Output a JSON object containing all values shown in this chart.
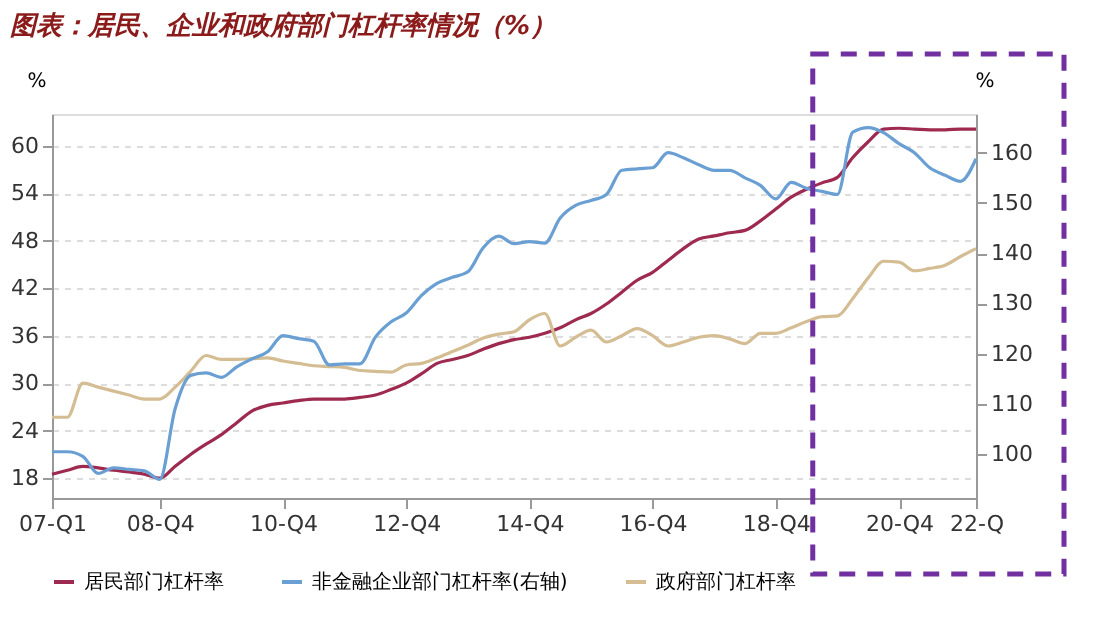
{
  "chart_data": {
    "type": "line",
    "title": "图表：居民、企业和政府部门杠杆率情况（%）",
    "ylabel": "%",
    "y2label": "%",
    "categories": [
      "07-Q1",
      null,
      null,
      null,
      null,
      null,
      null,
      "08-Q4",
      null,
      null,
      null,
      null,
      null,
      null,
      null,
      "10-Q4",
      null,
      null,
      null,
      null,
      null,
      null,
      null,
      "12-Q4",
      null,
      null,
      null,
      null,
      null,
      null,
      null,
      "14-Q4",
      null,
      null,
      null,
      null,
      null,
      null,
      null,
      "16-Q4",
      null,
      null,
      null,
      null,
      null,
      null,
      null,
      "18-Q4",
      null,
      null,
      null,
      null,
      null,
      null,
      null,
      "20-Q4",
      null,
      null,
      null,
      null,
      "22-Q"
    ],
    "series": [
      {
        "name": "居民部门杠杆率",
        "color": "#9e2a4f",
        "values": [
          18.5,
          19,
          19.5,
          19.3,
          19,
          18.8,
          18.5,
          18,
          19.5,
          21,
          22.3,
          23.5,
          25,
          26.5,
          27.2,
          27.5,
          27.8,
          28,
          28,
          28,
          28.2,
          28.5,
          29.2,
          30,
          31.2,
          32.5,
          33,
          33.5,
          34.3,
          35,
          35.5,
          35.8,
          36.3,
          37,
          38,
          38.8,
          40,
          41.5,
          43,
          44,
          45.5,
          47,
          48.2,
          48.6,
          49,
          49.3,
          50.5,
          52,
          53.5,
          54.5,
          55.3,
          56,
          58.5,
          60.5,
          62.1,
          62.2,
          62.1,
          62,
          62,
          62.1,
          62.1
        ]
      },
      {
        "name": "非金融企业部门杠杆率(右轴)",
        "color": "#6a9fd4",
        "axis": "y2",
        "values": [
          100.5,
          100.5,
          99.6,
          96.2,
          97.3,
          97,
          96.7,
          95,
          109.1,
          115.7,
          116.2,
          115.3,
          117.4,
          119,
          120.4,
          123.6,
          123,
          122.5,
          117.8,
          118,
          118,
          123.3,
          126.3,
          128.1,
          131.6,
          134,
          135.2,
          136.3,
          141.1,
          143.4,
          141.9,
          142.3,
          142,
          147,
          149.5,
          150.5,
          151.7,
          156.5,
          156.8,
          157,
          160,
          159,
          157.6,
          156.5,
          156.5,
          155,
          153.5,
          150.8,
          154.1,
          152.9,
          152.3,
          151.7,
          164.1,
          165,
          164,
          161.8,
          160,
          157,
          155.5,
          154.3,
          158.8
        ]
      },
      {
        "name": "政府部门杠杆率",
        "color": "#d4bd93",
        "values": [
          25.7,
          25.7,
          30,
          29.5,
          29,
          28.5,
          28,
          28,
          29.5,
          31.5,
          33.5,
          33,
          33,
          33.1,
          33.2,
          32.8,
          32.5,
          32.2,
          32.1,
          32,
          31.6,
          31.5,
          31.4,
          32.3,
          32.5,
          33.2,
          34,
          34.8,
          35.7,
          36.2,
          36.5,
          38,
          38.8,
          34.7,
          35.8,
          36.7,
          35.2,
          36,
          36.9,
          36,
          34.7,
          35.2,
          35.8,
          36,
          35.6,
          35,
          36.3,
          36.3,
          37,
          37.8,
          38.4,
          38.5,
          40.7,
          43.3,
          45.4,
          45.3,
          44.2,
          44.5,
          44.9,
          46,
          47
        ]
      }
    ],
    "ylim": [
      15.5,
      64
    ],
    "yticks": [
      18,
      24,
      30,
      36,
      42,
      48,
      54,
      60
    ],
    "y2lim": [
      91.3,
      167.7
    ],
    "y2ticks": [
      100,
      110,
      120,
      130,
      140,
      150,
      160
    ],
    "grid": "y",
    "legend": "bottom",
    "line_style": "solid",
    "marker": "none"
  }
}
